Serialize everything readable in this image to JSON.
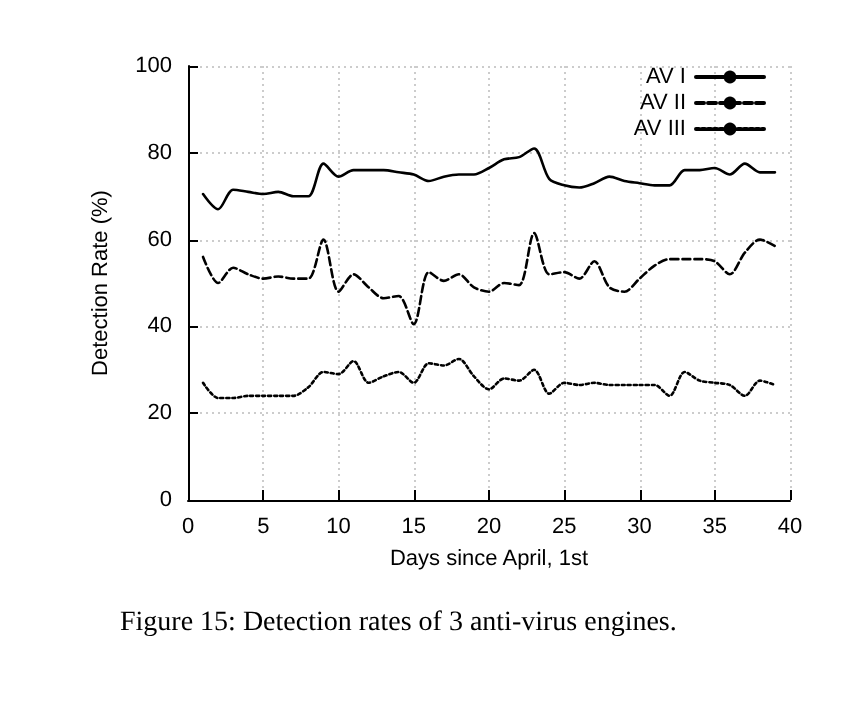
{
  "chart_data": {
    "type": "line",
    "xlabel": "Days since April, 1st",
    "ylabel": "Detection Rate (%)",
    "x": [
      1,
      2,
      3,
      4,
      5,
      6,
      7,
      8,
      9,
      10,
      11,
      12,
      13,
      14,
      15,
      16,
      17,
      18,
      19,
      20,
      21,
      22,
      23,
      24,
      25,
      26,
      27,
      28,
      29,
      30,
      31,
      32,
      33,
      34,
      35,
      36,
      37,
      38,
      39
    ],
    "series": [
      {
        "name": "AV I",
        "color": "#000000",
        "line_style": "solid",
        "values": [
          70.5,
          67,
          71.5,
          71,
          70.5,
          71,
          70,
          70,
          77.5,
          74.5,
          76,
          76,
          76,
          75.5,
          75,
          73.5,
          74.5,
          75,
          75,
          76.5,
          78.5,
          79,
          81,
          74,
          72.5,
          72,
          73,
          74.5,
          73.5,
          73,
          72.5,
          72.5,
          76,
          76,
          76.5,
          75,
          77.5,
          75.5,
          75.5
        ]
      },
      {
        "name": "AV II",
        "color": "#000000",
        "line_style": "dashed",
        "values": [
          56,
          50,
          53.5,
          52,
          51,
          51.5,
          51,
          51,
          60,
          48,
          52,
          49,
          46.5,
          47,
          40.5,
          52.5,
          50.5,
          52,
          49,
          48,
          50,
          49.5,
          61.5,
          52,
          52.5,
          51,
          55,
          49,
          48,
          51,
          54,
          55.5,
          55.5,
          55.5,
          55,
          52,
          57,
          60,
          58.5
        ]
      },
      {
        "name": "AV III",
        "color": "#000000",
        "line_style": "dotted",
        "values": [
          27,
          23.5,
          23.5,
          24,
          24,
          24,
          24,
          26,
          29.5,
          29,
          32,
          27,
          28.5,
          29.5,
          27,
          31.5,
          31,
          32.5,
          28.5,
          25.5,
          28,
          27.5,
          30,
          24.5,
          27,
          26.5,
          27,
          26.5,
          26.5,
          26.5,
          26.5,
          24,
          29.5,
          27.5,
          27,
          26.5,
          24,
          27.5,
          26.5
        ]
      }
    ],
    "xlim": [
      0,
      40
    ],
    "xticks": [
      0,
      5,
      10,
      15,
      20,
      25,
      30,
      35,
      40
    ],
    "ylim": [
      0,
      100
    ],
    "yticks": [
      0,
      20,
      40,
      60,
      80,
      100
    ],
    "grid": true,
    "legend": "top right",
    "marker": "none",
    "annotations": [
      "Figure 15:  Detection rates of 3 anti-virus engines."
    ]
  }
}
